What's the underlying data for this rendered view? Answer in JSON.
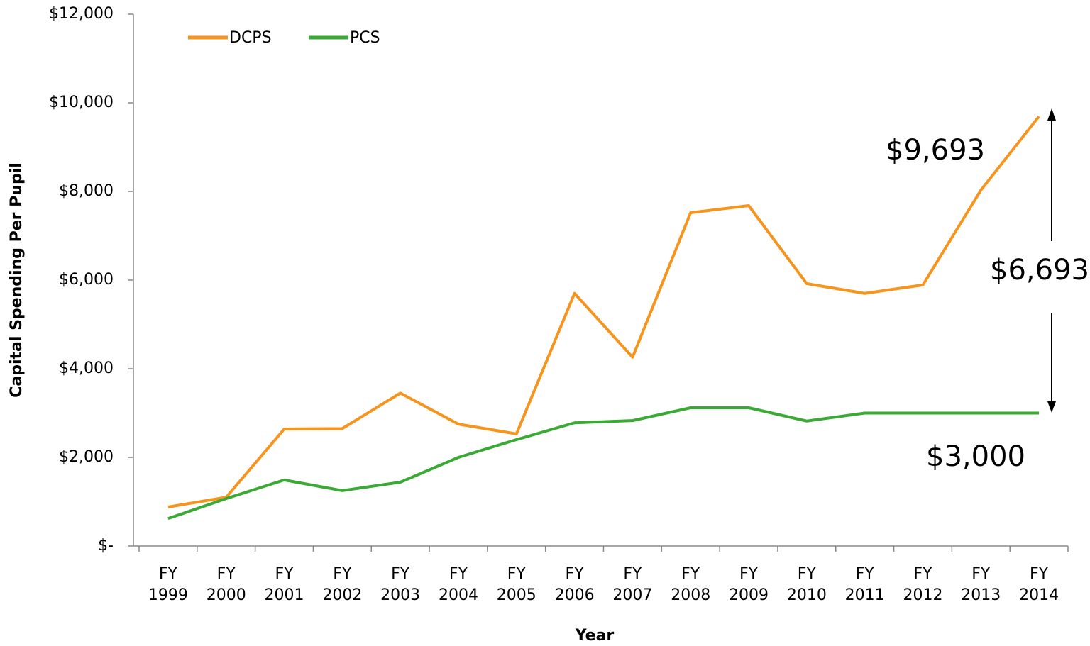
{
  "chart_data": {
    "type": "line",
    "x_label": "Year",
    "y_label": "Capital Spending Per Pupil",
    "categories": [
      "FY 1999",
      "FY 2000",
      "FY 2001",
      "FY 2002",
      "FY 2003",
      "FY 2004",
      "FY 2005",
      "FY 2006",
      "FY 2007",
      "FY 2008",
      "FY 2009",
      "FY 2010",
      "FY 2011",
      "FY 2012",
      "FY 2013",
      "FY 2014"
    ],
    "series": [
      {
        "name": "DCPS",
        "color": "#f7941d",
        "values": [
          880,
          1100,
          2640,
          2650,
          3450,
          2750,
          2530,
          5700,
          4260,
          7520,
          7680,
          5920,
          5700,
          5890,
          8030,
          9693
        ]
      },
      {
        "name": "PCS",
        "color": "#3aaa35",
        "values": [
          620,
          1070,
          1490,
          1250,
          1440,
          2000,
          2400,
          2780,
          2830,
          3120,
          3120,
          2820,
          3000,
          3000,
          3000,
          3000
        ]
      }
    ],
    "ylim": [
      0,
      12000
    ],
    "yticks": [
      {
        "value": 0,
        "label": "$-"
      },
      {
        "value": 2000,
        "label": "$2,000"
      },
      {
        "value": 4000,
        "label": "$4,000"
      },
      {
        "value": 6000,
        "label": "$6,000"
      },
      {
        "value": 8000,
        "label": "$8,000"
      },
      {
        "value": 10000,
        "label": "$10,000"
      },
      {
        "value": 12000,
        "label": "$12,000"
      }
    ],
    "legend": "top-left",
    "annotations": [
      "$9,693",
      "$6,693",
      "$3,000"
    ]
  }
}
